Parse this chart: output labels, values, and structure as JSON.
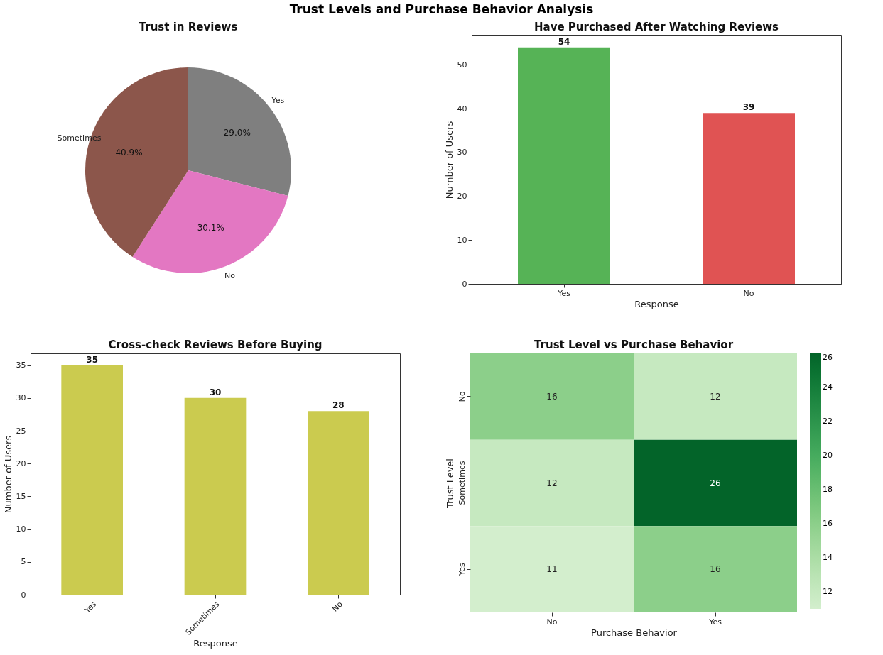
{
  "chart_data": [
    {
      "type": "other",
      "title": "Trust Levels and Purchase Behavior Analysis"
    },
    {
      "type": "pie",
      "title": "Trust in Reviews",
      "categories": [
        "Yes",
        "No",
        "Sometimes"
      ],
      "values": [
        29.0,
        30.1,
        40.9
      ],
      "colors": [
        "#7f7f7f",
        "#e377c2",
        "#8c564b"
      ],
      "value_labels": [
        "29.0%",
        "30.1%",
        "40.9%"
      ]
    },
    {
      "type": "bar",
      "title": "Have Purchased After Watching Reviews",
      "categories": [
        "Yes",
        "No"
      ],
      "values": [
        54,
        39
      ],
      "colors": [
        "#56b356",
        "#e05353"
      ],
      "xlabel": "Response",
      "ylabel": "Number of Users",
      "ylim": [
        0,
        56.7
      ],
      "yticks": [
        0,
        10,
        20,
        30,
        40,
        50
      ],
      "data_labels": true
    },
    {
      "type": "bar",
      "title": "Cross-check Reviews Before Buying",
      "categories": [
        "Yes",
        "Sometimes",
        "No"
      ],
      "values": [
        35,
        30,
        28
      ],
      "color": "#cbcb4f",
      "xlabel": "Response",
      "ylabel": "Number of Users",
      "ylim": [
        0,
        36.8
      ],
      "yticks": [
        0,
        5,
        10,
        15,
        20,
        25,
        30,
        35
      ],
      "data_labels": true
    },
    {
      "type": "heatmap",
      "title": "Trust Level vs Purchase Behavior",
      "categories": [
        "No",
        "Yes"
      ],
      "y_categories": [
        "No",
        "Sometimes",
        "Yes"
      ],
      "cells": [
        [
          16,
          12
        ],
        [
          12,
          26
        ],
        [
          11,
          16
        ]
      ],
      "xlabel": "Purchase Behavior",
      "ylabel": "Trust Level",
      "clim": [
        11,
        26
      ],
      "cticks": [
        12,
        14,
        16,
        18,
        20,
        22,
        24,
        26
      ],
      "data_labels": true
    }
  ]
}
